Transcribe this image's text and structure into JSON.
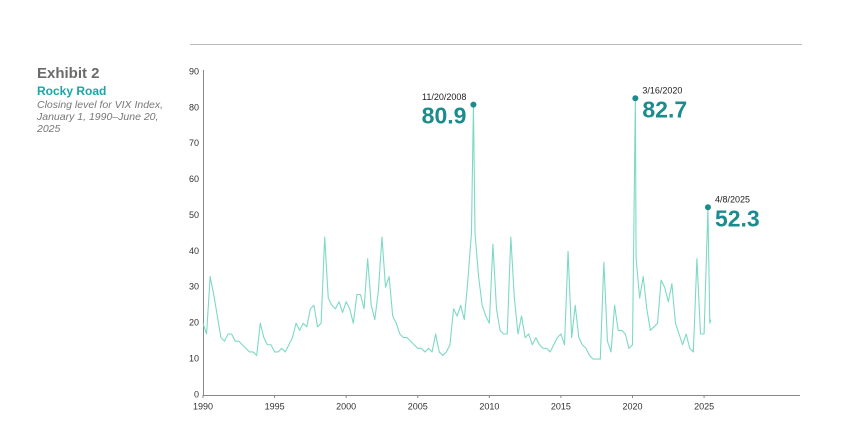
{
  "chart_data": {
    "type": "line",
    "exhibit": "Exhibit 2",
    "title": "Rocky Road",
    "subtitle": [
      "Closing level for VIX Index,",
      "January 1, 1990–June 20,",
      "2025"
    ],
    "color": "#7dd9c5",
    "x": [
      1990,
      1990.25,
      1990.5,
      1990.75,
      1991,
      1991.25,
      1991.5,
      1991.75,
      1992,
      1992.25,
      1992.5,
      1992.75,
      1993,
      1993.25,
      1993.5,
      1993.75,
      1994,
      1994.25,
      1994.5,
      1994.75,
      1995,
      1995.25,
      1995.5,
      1995.75,
      1996,
      1996.25,
      1996.5,
      1996.75,
      1997,
      1997.25,
      1997.5,
      1997.75,
      1998,
      1998.25,
      1998.5,
      1998.75,
      1999,
      1999.25,
      1999.5,
      1999.75,
      2000,
      2000.25,
      2000.5,
      2000.75,
      2001,
      2001.25,
      2001.5,
      2001.75,
      2002,
      2002.25,
      2002.5,
      2002.75,
      2003,
      2003.25,
      2003.5,
      2003.75,
      2004,
      2004.25,
      2004.5,
      2004.75,
      2005,
      2005.25,
      2005.5,
      2005.75,
      2006,
      2006.25,
      2006.5,
      2006.75,
      2007,
      2007.25,
      2007.5,
      2007.75,
      2008,
      2008.25,
      2008.5,
      2008.75,
      2008.89,
      2009,
      2009.25,
      2009.5,
      2009.75,
      2010,
      2010.25,
      2010.5,
      2010.75,
      2011,
      2011.25,
      2011.5,
      2011.75,
      2012,
      2012.25,
      2012.5,
      2012.75,
      2013,
      2013.25,
      2013.5,
      2013.75,
      2014,
      2014.25,
      2014.5,
      2014.75,
      2015,
      2015.25,
      2015.5,
      2015.75,
      2016,
      2016.25,
      2016.5,
      2016.75,
      2017,
      2017.25,
      2017.5,
      2017.75,
      2018,
      2018.25,
      2018.5,
      2018.75,
      2019,
      2019.25,
      2019.5,
      2019.75,
      2020,
      2020.2,
      2020.25,
      2020.5,
      2020.75,
      2021,
      2021.25,
      2021.5,
      2021.75,
      2022,
      2022.25,
      2022.5,
      2022.75,
      2023,
      2023.25,
      2023.5,
      2023.75,
      2024,
      2024.25,
      2024.5,
      2024.75,
      2025,
      2025.27,
      2025.4,
      2025.47
    ],
    "values": [
      20,
      17,
      33,
      28,
      22,
      16,
      15,
      17,
      17,
      15,
      15,
      14,
      13,
      12,
      12,
      11,
      20,
      16,
      14,
      14,
      12,
      12,
      13,
      12,
      14,
      16,
      20,
      18,
      20,
      19,
      24,
      25,
      19,
      20,
      44,
      27,
      25,
      24,
      26,
      23,
      26,
      24,
      20,
      28,
      28,
      24,
      38,
      25,
      21,
      29,
      44,
      30,
      33,
      22,
      20,
      17,
      16,
      16,
      15,
      14,
      13,
      13,
      12,
      13,
      12,
      17,
      12,
      11,
      12,
      14,
      24,
      22,
      25,
      21,
      32,
      45,
      80.9,
      45,
      33,
      25,
      22,
      20,
      42,
      24,
      18,
      17,
      17,
      44,
      27,
      17,
      22,
      16,
      17,
      14,
      16,
      14,
      13,
      13,
      12,
      14,
      16,
      17,
      14,
      40,
      16,
      25,
      16,
      14,
      13,
      11,
      10,
      10,
      10,
      37,
      15,
      12,
      25,
      18,
      18,
      17,
      13,
      14,
      82.7,
      38,
      27,
      33,
      24,
      18,
      19,
      20,
      32,
      30,
      26,
      31,
      20,
      17,
      14,
      17,
      13,
      12,
      38,
      17,
      17,
      52.3,
      20,
      21
    ],
    "xlim": [
      1990,
      2031.7
    ],
    "xticks": [
      1990,
      1995,
      2000,
      2005,
      2010,
      2015,
      2020,
      2025
    ],
    "ylim": [
      0,
      90
    ],
    "yticks": [
      0,
      10,
      20,
      30,
      40,
      50,
      60,
      70,
      80,
      90
    ],
    "grid": false,
    "annotation_color": "#1b8b8e",
    "annotations": [
      {
        "x": 2008.89,
        "y": 80.9,
        "date": "11/20/2008",
        "side": "left"
      },
      {
        "x": 2020.2,
        "y": 82.7,
        "date": "3/16/2020",
        "side": "right"
      },
      {
        "x": 2025.27,
        "y": 52.3,
        "date": "4/8/2025",
        "side": "right"
      }
    ]
  }
}
